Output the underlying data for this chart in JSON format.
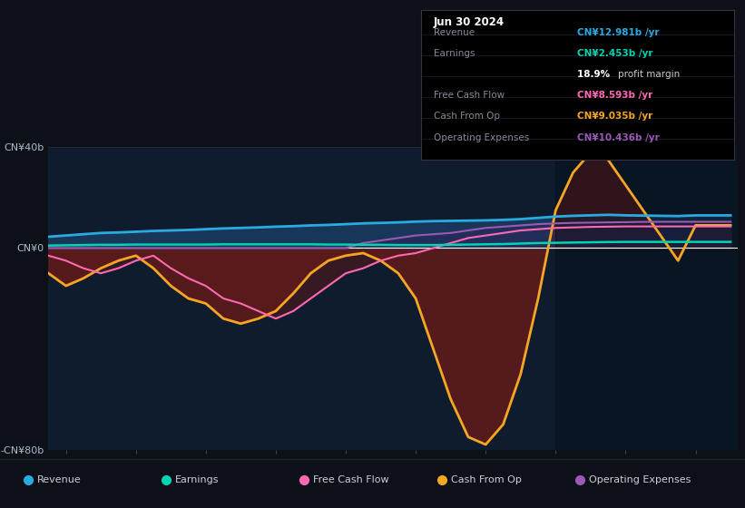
{
  "bg_color": "#0d1117",
  "chart_bg": "#0e1c2e",
  "years": [
    2014.75,
    2015.0,
    2015.25,
    2015.5,
    2015.75,
    2016.0,
    2016.25,
    2016.5,
    2016.75,
    2017.0,
    2017.25,
    2017.5,
    2017.75,
    2018.0,
    2018.25,
    2018.5,
    2018.75,
    2019.0,
    2019.25,
    2019.5,
    2019.75,
    2020.0,
    2020.25,
    2020.5,
    2020.75,
    2021.0,
    2021.25,
    2021.5,
    2021.75,
    2022.0,
    2022.25,
    2022.5,
    2022.75,
    2023.0,
    2023.25,
    2023.5,
    2023.75,
    2024.0,
    2024.25,
    2024.5
  ],
  "revenue": [
    4.5,
    5.0,
    5.5,
    6.0,
    6.2,
    6.5,
    6.8,
    7.0,
    7.2,
    7.5,
    7.8,
    8.0,
    8.2,
    8.5,
    8.7,
    9.0,
    9.2,
    9.5,
    9.8,
    10.0,
    10.2,
    10.5,
    10.7,
    10.8,
    10.9,
    11.0,
    11.2,
    11.5,
    12.0,
    12.5,
    12.8,
    13.0,
    13.2,
    13.0,
    12.9,
    12.8,
    12.7,
    12.981,
    12.981,
    12.981
  ],
  "earnings": [
    1.0,
    1.1,
    1.2,
    1.3,
    1.3,
    1.4,
    1.4,
    1.4,
    1.4,
    1.4,
    1.5,
    1.5,
    1.5,
    1.5,
    1.5,
    1.5,
    1.4,
    1.4,
    1.3,
    1.3,
    1.2,
    1.2,
    1.2,
    1.3,
    1.4,
    1.5,
    1.6,
    1.8,
    2.0,
    2.1,
    2.2,
    2.3,
    2.4,
    2.453,
    2.453,
    2.453,
    2.453,
    2.453,
    2.453,
    2.453
  ],
  "free_cash_flow": [
    -3.0,
    -5.0,
    -8.0,
    -10.0,
    -8.0,
    -5.0,
    -3.0,
    -8.0,
    -12.0,
    -15.0,
    -20.0,
    -22.0,
    -25.0,
    -28.0,
    -25.0,
    -20.0,
    -15.0,
    -10.0,
    -8.0,
    -5.0,
    -3.0,
    -2.0,
    0.0,
    2.0,
    4.0,
    5.0,
    6.0,
    7.0,
    7.5,
    8.0,
    8.2,
    8.4,
    8.5,
    8.593,
    8.593,
    8.593,
    8.593,
    8.593,
    8.593,
    8.593
  ],
  "cash_from_op": [
    -10.0,
    -15.0,
    -12.0,
    -8.0,
    -5.0,
    -3.0,
    -8.0,
    -15.0,
    -20.0,
    -22.0,
    -28.0,
    -30.0,
    -28.0,
    -25.0,
    -18.0,
    -10.0,
    -5.0,
    -3.0,
    -2.0,
    -5.0,
    -10.0,
    -20.0,
    -40.0,
    -60.0,
    -75.0,
    -78.0,
    -70.0,
    -50.0,
    -20.0,
    15.0,
    30.0,
    38.0,
    35.0,
    25.0,
    15.0,
    5.0,
    -5.0,
    9.035,
    9.035,
    9.035
  ],
  "operating_expenses": [
    0.0,
    0.0,
    0.0,
    0.0,
    0.0,
    0.0,
    0.0,
    0.0,
    0.0,
    0.0,
    0.0,
    0.0,
    0.0,
    0.0,
    0.0,
    0.0,
    0.0,
    0.0,
    2.0,
    3.0,
    4.0,
    5.0,
    5.5,
    6.0,
    7.0,
    8.0,
    8.5,
    9.0,
    9.5,
    9.8,
    10.0,
    10.1,
    10.2,
    10.3,
    10.4,
    10.436,
    10.436,
    10.436,
    10.436,
    10.436
  ],
  "ylim": [
    -80,
    40
  ],
  "xlim": [
    2014.75,
    2024.6
  ],
  "xticks": [
    2015,
    2016,
    2017,
    2018,
    2019,
    2020,
    2021,
    2022,
    2023,
    2024
  ],
  "ytick_positions": [
    -80,
    0,
    40
  ],
  "ytick_labels": [
    "-CN¥80b",
    "CN¥0",
    "CN¥40b"
  ],
  "revenue_color": "#29abe2",
  "earnings_color": "#00d4b4",
  "fcf_color": "#ff69b4",
  "cashop_color": "#f5a623",
  "opex_color": "#9b59b6",
  "revenue_fill_color": "#1a3a5c",
  "cashop_fill_dark": "#5c1a1a",
  "opex_fill_color": "#3a1a5c",
  "grid_color": "#1a2e45",
  "zero_line_color": "#ffffff",
  "highlight_start": 2022.0,
  "highlight_color": "#060e1a",
  "revenue_label": "Revenue",
  "earnings_label": "Earnings",
  "fcf_label": "Free Cash Flow",
  "cashop_label": "Cash From Op",
  "opex_label": "Operating Expenses",
  "info_title": "Jun 30 2024",
  "info_rows": [
    {
      "label": "Revenue",
      "value": "CN¥12.981b /yr",
      "color": "#29abe2"
    },
    {
      "label": "Earnings",
      "value": "CN¥2.453b /yr",
      "color": "#00d4b4"
    },
    {
      "label": "",
      "value": "18.9% profit margin",
      "color": "#ffffff"
    },
    {
      "label": "Free Cash Flow",
      "value": "CN¥8.593b /yr",
      "color": "#ff69b4"
    },
    {
      "label": "Cash From Op",
      "value": "CN¥9.035b /yr",
      "color": "#f5a623"
    },
    {
      "label": "Operating Expenses",
      "value": "CN¥10.436b /yr",
      "color": "#9b59b6"
    }
  ]
}
